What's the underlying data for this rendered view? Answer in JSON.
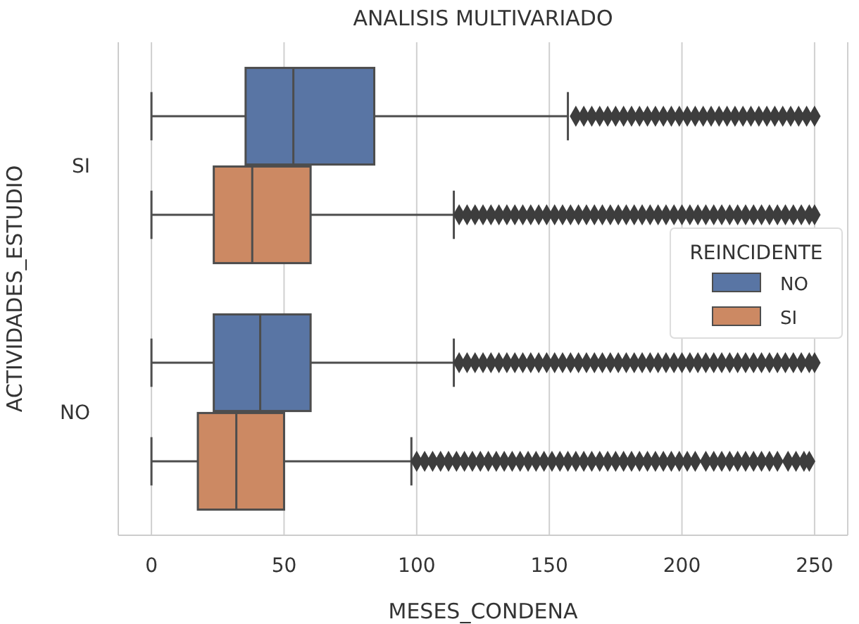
{
  "chart_data": {
    "type": "box",
    "title": "ANALISIS MULTIVARIADO",
    "xlabel": "MESES_CONDENA",
    "ylabel": "ACTIVIDADES_ESTUDIO",
    "legend_title": "REINCIDENTE",
    "orientation": "horizontal",
    "categories": [
      "SI",
      "NO"
    ],
    "series": [
      {
        "name": "NO",
        "color": "#5975a4",
        "boxes": [
          {
            "low": 0,
            "q1": 35.5,
            "median": 53.5,
            "q3": 84,
            "high": 157,
            "outliers": [
              160,
              163,
              166,
              169,
              172,
              175,
              178,
              181,
              184,
              187,
              190,
              193,
              196,
              199,
              202,
              205,
              208,
              211,
              214,
              217,
              220,
              223,
              226,
              229,
              232,
              235,
              238,
              241,
              244,
              247,
              250
            ]
          },
          {
            "low": 0,
            "q1": 23.5,
            "median": 41,
            "q3": 60,
            "high": 114,
            "outliers": [
              116,
              119,
              122,
              125,
              128,
              131,
              134,
              137,
              140,
              143,
              146,
              149,
              152,
              155,
              158,
              161,
              164,
              167,
              170,
              173,
              176,
              179,
              182,
              185,
              188,
              191,
              194,
              197,
              200,
              203,
              206,
              209,
              212,
              215,
              218,
              221,
              224,
              227,
              230,
              233,
              236,
              239,
              242,
              245,
              248,
              250
            ]
          }
        ]
      },
      {
        "name": "SI",
        "color": "#cc8963",
        "boxes": [
          {
            "low": 0,
            "q1": 23.5,
            "median": 38,
            "q3": 60,
            "high": 114,
            "outliers": [
              116,
              119,
              122,
              125,
              128,
              131,
              134,
              137,
              140,
              143,
              146,
              149,
              152,
              155,
              158,
              161,
              164,
              167,
              170,
              173,
              176,
              179,
              182,
              185,
              188,
              191,
              194,
              197,
              200,
              203,
              206,
              209,
              212,
              215,
              218,
              221,
              224,
              227,
              230,
              233,
              236,
              239,
              242,
              245,
              248,
              250
            ]
          },
          {
            "low": 0,
            "q1": 17.5,
            "median": 32,
            "q3": 50,
            "high": 98,
            "outliers": [
              100,
              103,
              106,
              109,
              112,
              115,
              118,
              121,
              124,
              127,
              130,
              133,
              136,
              139,
              142,
              145,
              148,
              151,
              154,
              157,
              160,
              163,
              166,
              169,
              172,
              175,
              178,
              181,
              184,
              187,
              190,
              193,
              196,
              199,
              202,
              205,
              209,
              212,
              215,
              218,
              221,
              224,
              227,
              230,
              233,
              236,
              240,
              243,
              246,
              248
            ]
          }
        ]
      }
    ],
    "xlim": [
      -12.5,
      262.5
    ],
    "xticks": [
      0,
      50,
      100,
      150,
      200,
      250
    ],
    "grid": "x",
    "legend": "right",
    "marker": "diamond"
  }
}
